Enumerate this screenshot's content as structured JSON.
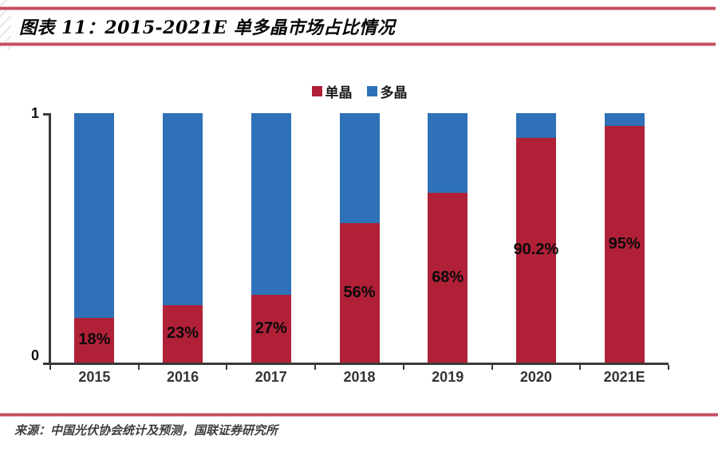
{
  "page": {
    "title": "图表 11：2015-2021E 单多晶市场占比情况",
    "source": "来源：中国光伏协会统计及预测，国联证券研究所",
    "accent_color": "#c24f60"
  },
  "legend": {
    "items": [
      {
        "label": "单晶",
        "color": "#b02138"
      },
      {
        "label": "多晶",
        "color": "#2e71b8"
      }
    ]
  },
  "chart_data": {
    "type": "bar",
    "stacked": true,
    "title": "2015-2021E 单多晶市场占比情况",
    "categories": [
      "2015",
      "2016",
      "2017",
      "2018",
      "2019",
      "2020",
      "2021E"
    ],
    "series": [
      {
        "name": "单晶",
        "color": "#b02138",
        "values": [
          0.18,
          0.23,
          0.27,
          0.56,
          0.68,
          0.902,
          0.95
        ]
      },
      {
        "name": "多晶",
        "color": "#2e71b8",
        "values": [
          0.82,
          0.77,
          0.73,
          0.44,
          0.32,
          0.098,
          0.05
        ]
      }
    ],
    "data_labels": [
      "18%",
      "23%",
      "27%",
      "56%",
      "68%",
      "90.2%",
      "95%"
    ],
    "xlabel": "",
    "ylabel": "",
    "ylim": [
      0,
      1
    ],
    "yticks": [
      "0",
      "1"
    ],
    "grid": false,
    "legend_position": "top-center"
  }
}
